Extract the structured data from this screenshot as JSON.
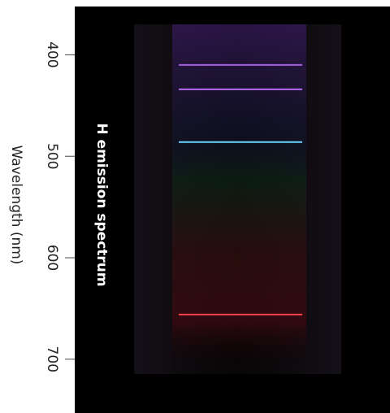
{
  "chart_data": {
    "type": "spectrum",
    "title": "H emission spectrum",
    "ylabel": "Wavelength (nm)",
    "ylim": [
      346,
      753
    ],
    "yticks": [
      400,
      500,
      600,
      700
    ],
    "series": [
      {
        "name": null,
        "values": [
          410,
          434,
          486,
          656
        ],
        "colors": [
          "#a060e0",
          "#b468f0",
          "#6cd4ff",
          "#ff4050"
        ]
      }
    ]
  }
}
